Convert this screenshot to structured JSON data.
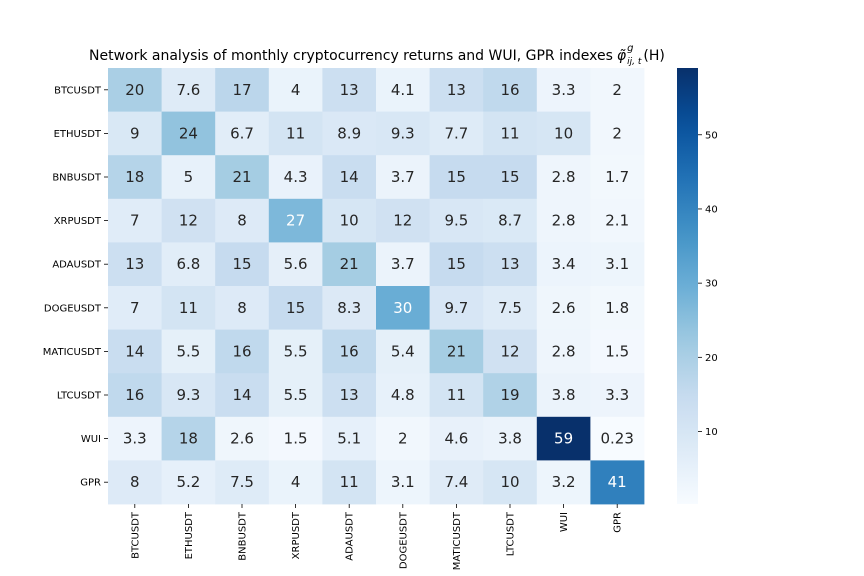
{
  "chart_data": {
    "type": "heatmap",
    "title": "Network analysis of monthly cryptocurrency returns and WUI, GPR indexes",
    "title_symbol": "φ̃",
    "title_symbol_sup": "g",
    "title_symbol_sub": "ij, t",
    "title_suffix": "(H)",
    "rows": [
      "BTCUSDT",
      "ETHUSDT",
      "BNBUSDT",
      "XRPUSDT",
      "ADAUSDT",
      "DOGEUSDT",
      "MATICUSDT",
      "LTCUSDT",
      "WUI",
      "GPR"
    ],
    "columns": [
      "BTCUSDT",
      "ETHUSDT",
      "BNBUSDT",
      "XRPUSDT",
      "ADAUSDT",
      "DOGEUSDT",
      "MATICUSDT",
      "LTCUSDT",
      "WUI",
      "GPR"
    ],
    "values": [
      [
        20,
        7.6,
        17,
        4,
        13,
        4.1,
        13,
        16,
        3.3,
        2
      ],
      [
        9,
        24,
        6.7,
        11,
        8.9,
        9.3,
        7.7,
        11,
        10,
        2
      ],
      [
        18,
        5,
        21,
        4.3,
        14,
        3.7,
        15,
        15,
        2.8,
        1.7
      ],
      [
        7,
        12,
        8,
        27,
        10,
        12,
        9.5,
        8.7,
        2.8,
        2.1
      ],
      [
        13,
        6.8,
        15,
        5.6,
        21,
        3.7,
        15,
        13,
        3.4,
        3.1
      ],
      [
        7,
        11,
        8,
        15,
        8.3,
        30,
        9.7,
        7.5,
        2.6,
        1.8
      ],
      [
        14,
        5.5,
        16,
        5.5,
        16,
        5.4,
        21,
        12,
        2.8,
        1.5
      ],
      [
        16,
        9.3,
        14,
        5.5,
        13,
        4.8,
        11,
        19,
        3.8,
        3.3
      ],
      [
        3.3,
        18,
        2.6,
        1.5,
        5.1,
        2,
        4.6,
        3.8,
        59,
        0.23
      ],
      [
        8,
        5.2,
        7.5,
        4,
        11,
        3.1,
        7.4,
        10,
        3.2,
        41
      ]
    ],
    "colormap": "Blues",
    "vmin": 0.23,
    "vmax": 59,
    "colorbar_ticks": [
      10,
      20,
      30,
      40,
      50
    ],
    "annotations": true
  }
}
